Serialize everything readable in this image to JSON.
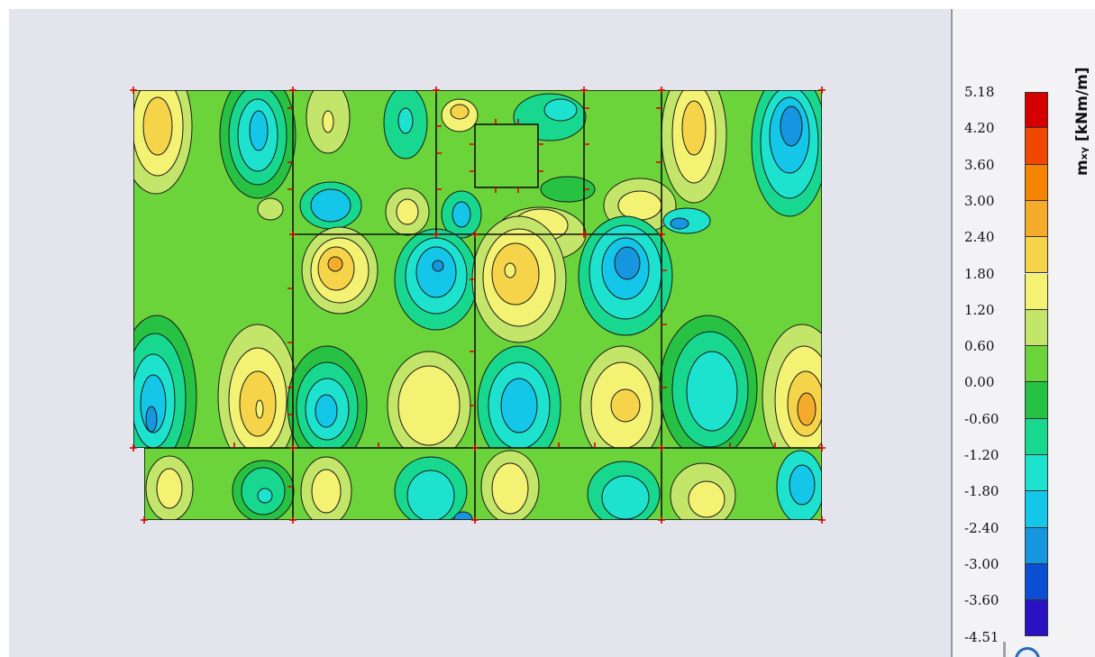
{
  "legend": {
    "quantity_label": "mₓᵧ [kNm/m]",
    "ticks": [
      "5.18",
      "4.20",
      "3.60",
      "3.00",
      "2.40",
      "1.80",
      "1.20",
      "0.60",
      "0.00",
      "-0.60",
      "-1.20",
      "-1.80",
      "-2.40",
      "-3.00",
      "-3.60",
      "-4.51"
    ],
    "colors": [
      "#d40000",
      "#f04800",
      "#f58400",
      "#f5ac2c",
      "#f5d44a",
      "#f4f272",
      "#c3e56a",
      "#6ad43a",
      "#27c143",
      "#17d88e",
      "#1de2ce",
      "#14c6e8",
      "#1796e0",
      "#0a4ed4",
      "#2a12c2"
    ]
  },
  "model": {
    "outline_color": "#111111",
    "support_marker_color": "#d40000"
  }
}
